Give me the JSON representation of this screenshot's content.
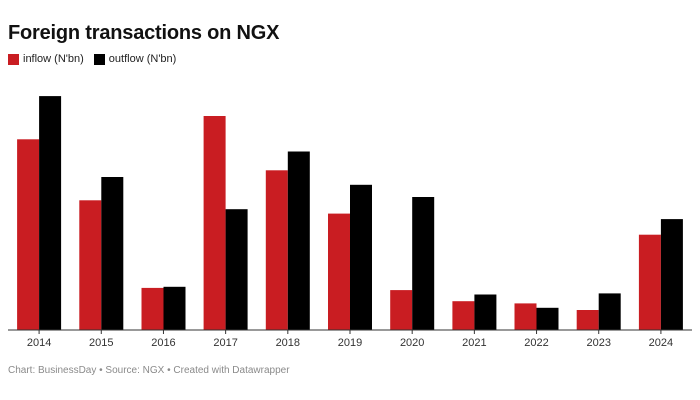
{
  "chart_data": {
    "type": "bar",
    "title": "Foreign transactions on NGX",
    "categories": [
      "2014",
      "2015",
      "2016",
      "2017",
      "2018",
      "2019",
      "2020",
      "2021",
      "2022",
      "2023",
      "2024"
    ],
    "series": [
      {
        "name": "inflow (N'bn)",
        "color": "#c91d22",
        "values": [
          1.72,
          1.17,
          0.38,
          1.93,
          1.44,
          1.05,
          0.36,
          0.26,
          0.24,
          0.18,
          0.86
        ]
      },
      {
        "name": "outflow (N'bn)",
        "color": "#000000",
        "values": [
          2.11,
          1.38,
          0.39,
          1.09,
          1.61,
          1.31,
          1.2,
          0.32,
          0.2,
          0.33,
          1.0
        ]
      }
    ],
    "ylim": [
      0,
      2.3
    ],
    "grid": false,
    "legend_position": "top-left"
  },
  "footer": "Chart: BusinessDay • Source: NGX • Created with Datawrapper"
}
